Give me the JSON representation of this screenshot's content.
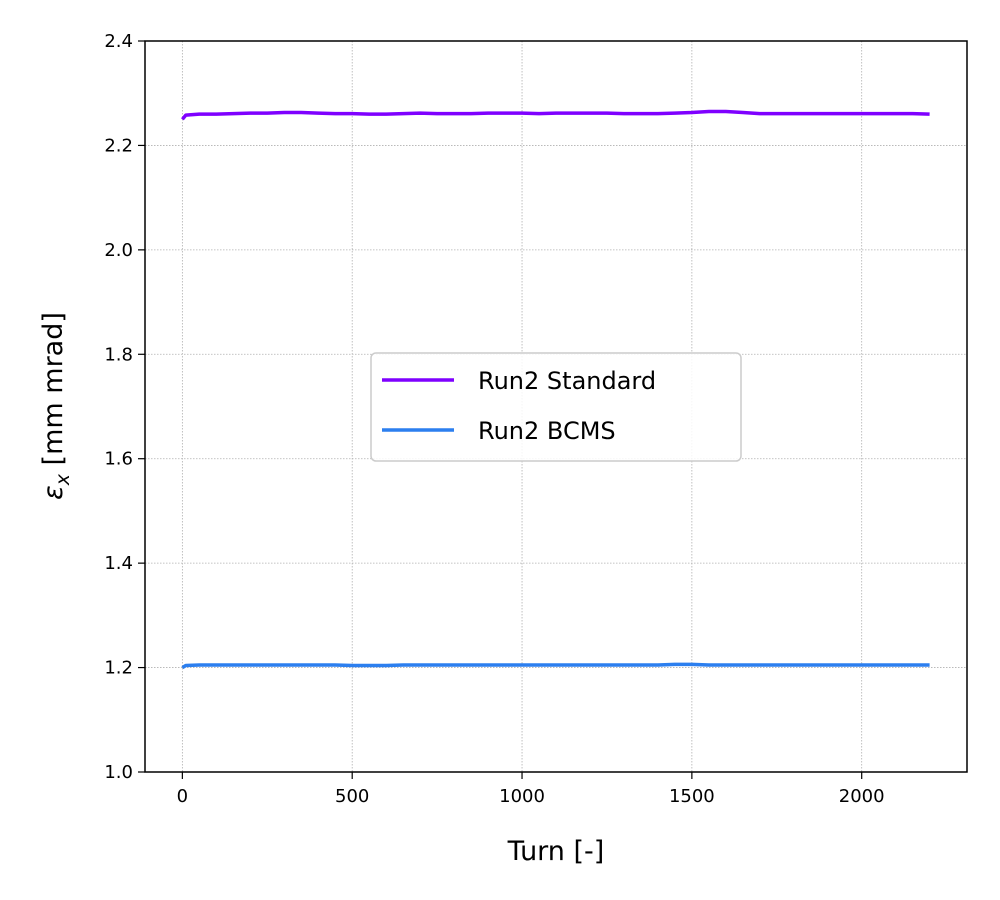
{
  "chart_data": {
    "type": "line",
    "title": "",
    "xlabel": "Turn [-]",
    "ylabel_symbol": "ε",
    "ylabel_subscript": "x",
    "ylabel_units": " [mm mrad]",
    "xlim": [
      -110,
      2310
    ],
    "ylim": [
      1.0,
      2.4
    ],
    "xticks": [
      0,
      500,
      1000,
      1500,
      2000
    ],
    "xtick_labels": [
      "0",
      "500",
      "1000",
      "1500",
      "2000"
    ],
    "yticks": [
      1.0,
      1.2,
      1.4,
      1.6,
      1.8,
      2.0,
      2.2,
      2.4
    ],
    "ytick_labels": [
      "1.0",
      "1.2",
      "1.4",
      "1.6",
      "1.8",
      "2.0",
      "2.2",
      "2.4"
    ],
    "grid": true,
    "legend_position": "center",
    "series": [
      {
        "name": "Run2 Standard",
        "color": "#7f00ff",
        "x": [
          0,
          10,
          50,
          100,
          150,
          200,
          250,
          300,
          350,
          400,
          450,
          500,
          550,
          600,
          650,
          700,
          750,
          800,
          850,
          900,
          950,
          1000,
          1050,
          1100,
          1150,
          1200,
          1250,
          1300,
          1350,
          1400,
          1450,
          1500,
          1550,
          1600,
          1650,
          1700,
          1750,
          1800,
          1850,
          1900,
          1950,
          2000,
          2050,
          2100,
          2150,
          2200
        ],
        "y": [
          2.25,
          2.258,
          2.26,
          2.26,
          2.261,
          2.262,
          2.262,
          2.263,
          2.263,
          2.262,
          2.261,
          2.261,
          2.26,
          2.26,
          2.261,
          2.262,
          2.261,
          2.261,
          2.261,
          2.262,
          2.262,
          2.262,
          2.261,
          2.262,
          2.262,
          2.262,
          2.262,
          2.261,
          2.261,
          2.261,
          2.262,
          2.263,
          2.265,
          2.265,
          2.263,
          2.261,
          2.261,
          2.261,
          2.261,
          2.261,
          2.261,
          2.261,
          2.261,
          2.261,
          2.261,
          2.26
        ]
      },
      {
        "name": "Run2 BCMS",
        "color": "#2c7fef",
        "x": [
          0,
          10,
          50,
          100,
          150,
          200,
          250,
          300,
          350,
          400,
          450,
          500,
          550,
          600,
          650,
          700,
          750,
          800,
          850,
          900,
          950,
          1000,
          1050,
          1100,
          1150,
          1200,
          1250,
          1300,
          1350,
          1400,
          1450,
          1500,
          1550,
          1600,
          1650,
          1700,
          1750,
          1800,
          1850,
          1900,
          1950,
          2000,
          2050,
          2100,
          2150,
          2200
        ],
        "y": [
          1.2,
          1.204,
          1.205,
          1.205,
          1.205,
          1.205,
          1.205,
          1.205,
          1.205,
          1.205,
          1.205,
          1.204,
          1.204,
          1.204,
          1.205,
          1.205,
          1.205,
          1.205,
          1.205,
          1.205,
          1.205,
          1.205,
          1.205,
          1.205,
          1.205,
          1.205,
          1.205,
          1.205,
          1.205,
          1.205,
          1.206,
          1.206,
          1.205,
          1.205,
          1.205,
          1.205,
          1.205,
          1.205,
          1.205,
          1.205,
          1.205,
          1.205,
          1.205,
          1.205,
          1.205,
          1.205
        ]
      }
    ]
  }
}
